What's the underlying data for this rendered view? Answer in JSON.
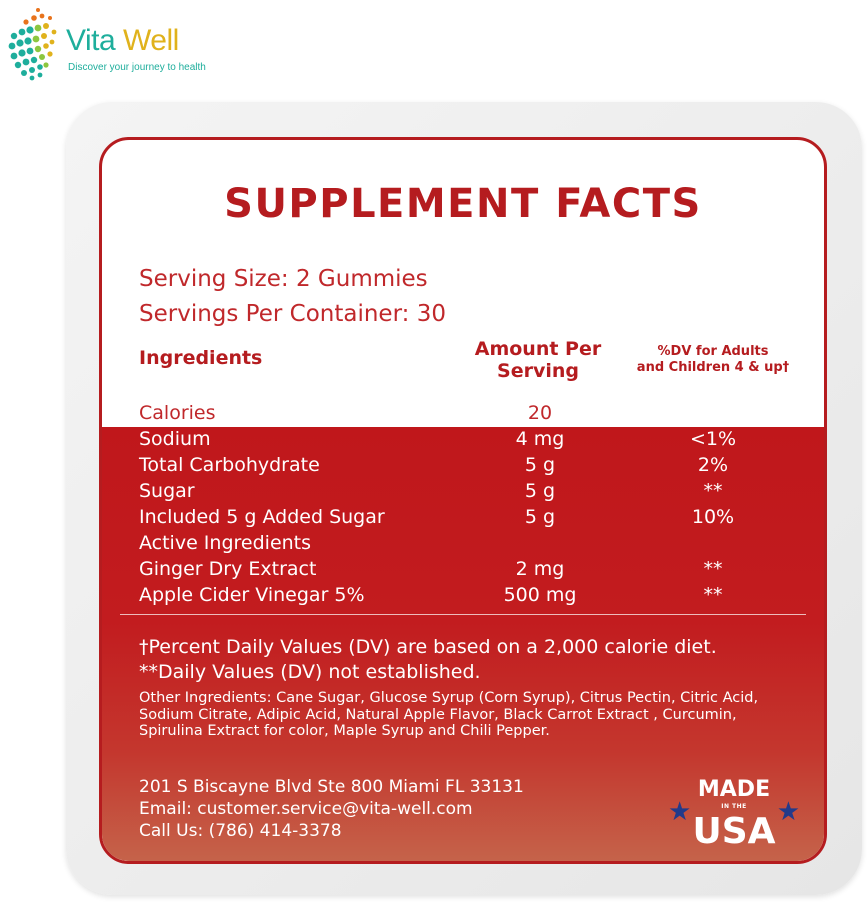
{
  "brand": {
    "name_part1": "Vita",
    "name_part2": "Well",
    "tagline": "Discover your journey to health",
    "colors": {
      "teal": "#1eae9c",
      "gold": "#e0b21c"
    }
  },
  "label": {
    "title": "SUPPLEMENT FACTS",
    "serving_size": "Serving Size: 2 Gummies",
    "servings_per_container": "Servings Per Container: 30",
    "headers": {
      "ingredients": "Ingredients",
      "amount_line1": "Amount Per",
      "amount_line2": "Serving",
      "dv_line1": "%DV for Adults",
      "dv_line2": "and Children 4 & up†"
    },
    "rows": [
      {
        "name": "Calories",
        "amount": "20",
        "dv": ""
      },
      {
        "name": "Sodium",
        "amount": "4 mg",
        "dv": "<1%"
      },
      {
        "name": "Total Carbohydrate",
        "amount": "5 g",
        "dv": "2%"
      },
      {
        "name": "Sugar",
        "amount": "5 g",
        "dv": "**"
      },
      {
        "name": "Included 5 g Added Sugar",
        "amount": "5 g",
        "dv": "10%"
      },
      {
        "name": "Active Ingredients",
        "amount": "",
        "dv": ""
      },
      {
        "name": "Ginger Dry Extract",
        "amount": "2 mg",
        "dv": "**"
      },
      {
        "name": "Apple Cider Vinegar 5%",
        "amount": "500 mg",
        "dv": "**"
      }
    ],
    "footnote_dv": "†Percent Daily Values (DV) are based on a 2,000 calorie diet.",
    "footnote_na": "**Daily Values (DV) not established.",
    "other_ingredients": "Other Ingredients: Cane Sugar, Glucose Syrup (Corn Syrup), Citrus Pectin, Citric Acid, Sodium Citrate, Adipic Acid, Natural Apple Flavor, Black Carrot Extract , Curcumin, Spirulina Extract for color, Maple Syrup and Chili Pepper.",
    "address": "201 S Biscayne Blvd Ste 800 Miami FL 33131",
    "email": "Email: customer.service@vita-well.com",
    "phone": "Call Us: (786) 414-3378",
    "badge": {
      "made": "MADE",
      "in_the": "IN THE",
      "country": "USA"
    },
    "colors": {
      "accent_red": "#b51c1f",
      "star_blue": "#233a8a"
    }
  }
}
